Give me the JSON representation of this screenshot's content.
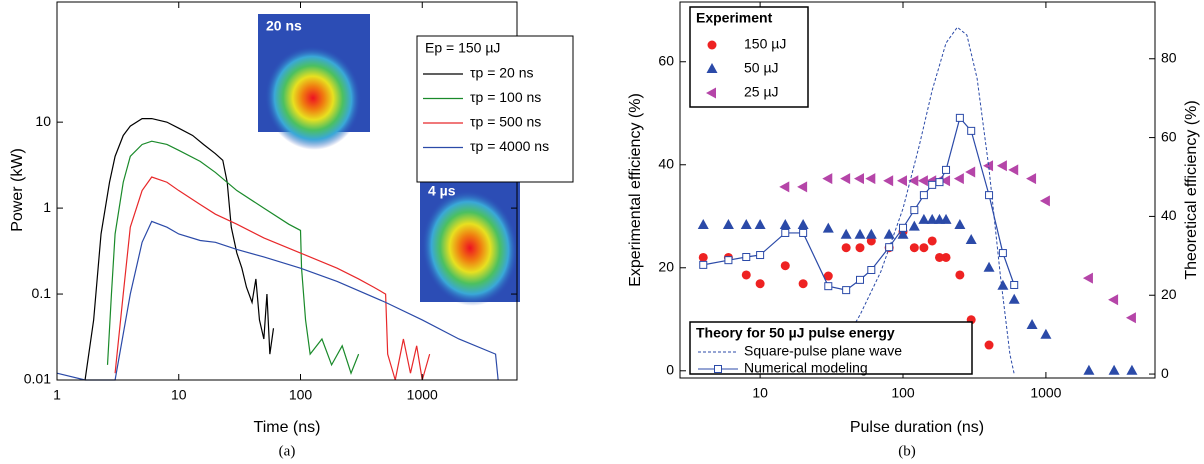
{
  "chart_data": [
    {
      "type": "line",
      "caption": "(a)",
      "xlabel": "Time (ns)",
      "ylabel": "Power (kW)",
      "xscale": "log",
      "yscale": "log",
      "xlim": [
        1,
        6000
      ],
      "ylim": [
        0.01,
        250
      ],
      "xticks": [
        1,
        10,
        100,
        1000
      ],
      "yticks": [
        0.01,
        0.1,
        1,
        10
      ],
      "legend_title": "Ep = 150 µJ",
      "insets": [
        "20 ns",
        "4 µs"
      ],
      "series": [
        {
          "name": "τp = 20 ns",
          "color": "#000000",
          "x": [
            1.7,
            2,
            2.3,
            2.7,
            3,
            3.5,
            4,
            5,
            6,
            8,
            10,
            13,
            16,
            20,
            23,
            25,
            27,
            30,
            33,
            36,
            40,
            43,
            46,
            50,
            53,
            56,
            60
          ],
          "values": [
            0.01,
            0.05,
            0.5,
            2,
            4,
            7,
            9,
            11,
            11,
            10,
            8.5,
            7,
            5.5,
            4.3,
            3.6,
            2,
            0.6,
            0.3,
            0.2,
            0.12,
            0.08,
            0.15,
            0.05,
            0.03,
            0.1,
            0.02,
            0.04
          ]
        },
        {
          "name": "τp = 100 ns",
          "color": "#1a8a2a",
          "x": [
            2.6,
            2.8,
            3,
            3.5,
            4,
            5,
            6,
            8,
            10,
            15,
            20,
            30,
            50,
            80,
            100,
            102,
            110,
            120,
            150,
            180,
            220,
            260,
            300
          ],
          "values": [
            0.015,
            0.1,
            0.5,
            2,
            4,
            5.5,
            6,
            5.5,
            4.7,
            3.5,
            2.6,
            1.6,
            1,
            0.65,
            0.55,
            0.2,
            0.05,
            0.02,
            0.03,
            0.015,
            0.025,
            0.012,
            0.02
          ]
        },
        {
          "name": "τp = 500 ns",
          "color": "#e8282a",
          "x": [
            3,
            3.5,
            4,
            5,
            6,
            8,
            10,
            15,
            20,
            30,
            50,
            100,
            200,
            300,
            400,
            500,
            520,
            600,
            700,
            800,
            900,
            1000,
            1150
          ],
          "values": [
            0.012,
            0.1,
            0.6,
            1.6,
            2.3,
            2,
            1.6,
            1.1,
            0.85,
            0.65,
            0.45,
            0.3,
            0.2,
            0.15,
            0.12,
            0.1,
            0.02,
            0.01,
            0.03,
            0.012,
            0.025,
            0.01,
            0.02
          ]
        },
        {
          "name": "τp = 4000 ns",
          "color": "#2b4aa8",
          "x": [
            1,
            1.7,
            2,
            3,
            4,
            5,
            6,
            8,
            10,
            15,
            20,
            30,
            50,
            100,
            200,
            500,
            1000,
            2000,
            4000,
            4200
          ],
          "values": [
            0.012,
            0.01,
            0.01,
            0.01,
            0.1,
            0.4,
            0.7,
            0.6,
            0.5,
            0.42,
            0.4,
            0.33,
            0.27,
            0.2,
            0.14,
            0.08,
            0.05,
            0.03,
            0.02,
            0.01
          ]
        }
      ]
    },
    {
      "type": "scatter",
      "caption": "(b)",
      "xlabel": "Pulse duration (ns)",
      "ylabel": "Experimental efficiency (%)",
      "y2label": "Theoretical efficiency (%)",
      "xscale": "log",
      "xlim": [
        2.75,
        5800
      ],
      "ylim": [
        -1.4,
        71.6
      ],
      "y2lim": [
        -1,
        94.4
      ],
      "xticks": [
        10,
        100,
        1000
      ],
      "yticks": [
        0,
        20,
        40,
        60
      ],
      "y2ticks": [
        0,
        20,
        40,
        60,
        80
      ],
      "legend_titles": [
        "Experiment",
        "Theory for 50 µJ pulse energy"
      ],
      "series": [
        {
          "name": "150 µJ",
          "color": "#ee2222",
          "marker": "circle",
          "legend": 0,
          "x": [
            4,
            6,
            8,
            10,
            15,
            20,
            30,
            40,
            50,
            60,
            80,
            100,
            120,
            140,
            160,
            180,
            200,
            250,
            300,
            400
          ],
          "values": [
            22,
            22,
            18.6,
            16.9,
            20.4,
            16.9,
            18.4,
            23.9,
            23.9,
            25.2,
            23.9,
            27,
            23.9,
            23.9,
            25.2,
            22,
            22,
            18.6,
            9.9,
            5
          ]
        },
        {
          "name": "50 µJ",
          "color": "#2b4aa8",
          "marker": "triangle-up",
          "legend": 0,
          "x": [
            4,
            6,
            8,
            10,
            15,
            20,
            30,
            40,
            50,
            60,
            80,
            100,
            120,
            140,
            160,
            180,
            200,
            250,
            300,
            400,
            500,
            600,
            800,
            1000,
            2000,
            3000,
            4000
          ],
          "values": [
            28.3,
            28.3,
            28.3,
            28.3,
            28.3,
            28.3,
            27.6,
            26.4,
            26.4,
            26.4,
            26.4,
            26.4,
            28,
            29.3,
            29.3,
            29.3,
            29.3,
            28.3,
            25.4,
            20,
            16.5,
            13.8,
            8.9,
            7,
            0,
            0,
            0
          ]
        },
        {
          "name": "25 µJ",
          "color": "#b545a8",
          "marker": "triangle-left",
          "legend": 0,
          "x": [
            15,
            20,
            30,
            40,
            50,
            60,
            80,
            100,
            120,
            140,
            160,
            180,
            200,
            250,
            300,
            400,
            500,
            600,
            800,
            1000,
            2000,
            3000,
            4000
          ],
          "values": [
            35.7,
            35.7,
            37.3,
            37.3,
            37.3,
            37.3,
            36.9,
            36.9,
            36.9,
            36.9,
            36.9,
            36.9,
            36.9,
            37.3,
            38.6,
            39.8,
            39.8,
            39,
            37.3,
            33,
            18,
            13.8,
            10.3
          ]
        },
        {
          "name": "Square-pulse plane wave",
          "color": "#2b4aa8",
          "line": "dashed",
          "axis": "y2",
          "legend": 1,
          "x": [
            25,
            30,
            40,
            50,
            70,
            100,
            130,
            160,
            200,
            240,
            280,
            330,
            400,
            480,
            560,
            600
          ],
          "values": [
            0,
            3,
            9,
            15,
            26,
            42,
            58,
            72,
            84,
            88,
            86,
            75,
            52,
            25,
            5,
            0
          ]
        },
        {
          "name": "Numerical modeling",
          "color": "#2b4aa8",
          "line": "solid",
          "marker": "square-open",
          "axis": "y2",
          "legend": 1,
          "x": [
            4,
            6,
            8,
            10,
            15,
            20,
            30,
            40,
            50,
            60,
            80,
            100,
            120,
            140,
            160,
            180,
            200,
            250,
            300,
            400,
            500,
            600
          ],
          "values": [
            27.7,
            28.9,
            29.7,
            30.2,
            35.8,
            35.8,
            22.3,
            21.3,
            23.9,
            26.4,
            32.2,
            37.1,
            41.6,
            45.4,
            48,
            48.7,
            51.8,
            65,
            61.7,
            45.4,
            30.7,
            22.6
          ]
        }
      ]
    }
  ]
}
